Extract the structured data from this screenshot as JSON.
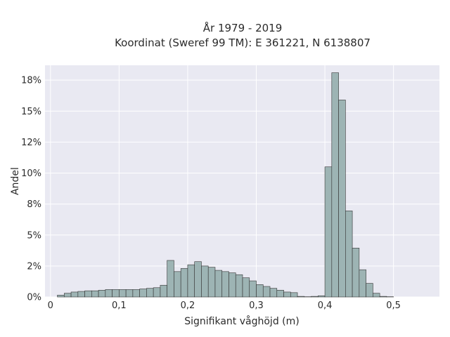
{
  "chart_data": {
    "type": "bar",
    "title_line1": "År 1979 - 2019",
    "title_line2": "Koordinat (Sweref 99 TM): E 361221, N 6138807",
    "xlabel": "Signifikant våghöjd (m)",
    "ylabel": "Andel",
    "xlim": [
      -0.008,
      0.567
    ],
    "ylim": [
      0,
      18.7
    ],
    "x_ticks": [
      0,
      0.1,
      0.2,
      0.3,
      0.4,
      0.5
    ],
    "x_tick_labels": [
      "0",
      "0,1",
      "0,2",
      "0,3",
      "0,4",
      "0,5"
    ],
    "y_ticks": [
      0,
      2.5,
      5,
      7.5,
      10,
      12.5,
      15,
      17.5
    ],
    "y_tick_labels": [
      "0%",
      "2%",
      "5%",
      "8%",
      "10%",
      "12%",
      "15%",
      "18%"
    ],
    "bin_width": 0.01,
    "bin_starts": [
      0.01,
      0.02,
      0.03,
      0.04,
      0.05,
      0.06,
      0.07,
      0.08,
      0.09,
      0.1,
      0.11,
      0.12,
      0.13,
      0.14,
      0.15,
      0.16,
      0.17,
      0.18,
      0.19,
      0.2,
      0.21,
      0.22,
      0.23,
      0.24,
      0.25,
      0.26,
      0.27,
      0.28,
      0.29,
      0.3,
      0.31,
      0.32,
      0.33,
      0.34,
      0.35,
      0.36,
      0.37,
      0.38,
      0.39,
      0.4,
      0.41,
      0.42,
      0.43,
      0.44,
      0.45,
      0.46,
      0.47,
      0.48,
      0.49,
      0.5
    ],
    "values": [
      0.15,
      0.3,
      0.4,
      0.45,
      0.5,
      0.5,
      0.55,
      0.6,
      0.6,
      0.6,
      0.6,
      0.6,
      0.65,
      0.7,
      0.75,
      0.95,
      2.95,
      2.05,
      2.3,
      2.6,
      2.85,
      2.5,
      2.4,
      2.15,
      2.05,
      1.95,
      1.8,
      1.55,
      1.3,
      1.0,
      0.85,
      0.7,
      0.55,
      0.4,
      0.35,
      0.05,
      0.02,
      0.05,
      0.1,
      10.5,
      18.1,
      15.9,
      6.95,
      3.95,
      2.2,
      1.1,
      0.3,
      0.05,
      0.02,
      0.0
    ],
    "colors": {
      "bar_fill": "#9db4b4",
      "bar_stroke": "#333333",
      "plot_background": "#e9e9f2",
      "grid": "#ffffff"
    },
    "grid": true
  }
}
